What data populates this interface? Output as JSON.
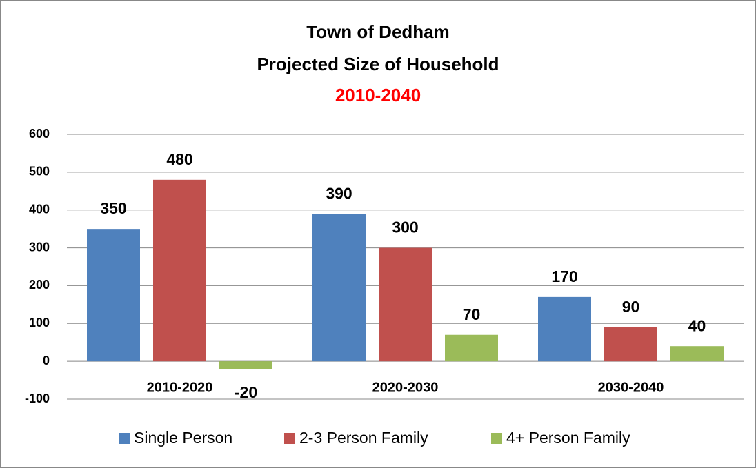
{
  "chart_data": {
    "type": "bar",
    "title": [
      "Town of Dedham",
      "Projected Size of Household"
    ],
    "subtitle": "2010-2040",
    "subtitle_color": "#ff0000",
    "categories": [
      "2010-2020",
      "2020-2030",
      "2030-2040"
    ],
    "series": [
      {
        "name": "Single Person",
        "color": "#4f81bd",
        "values": [
          350,
          390,
          170
        ]
      },
      {
        "name": "2-3 Person Family",
        "color": "#c0504d",
        "values": [
          480,
          300,
          90
        ]
      },
      {
        "name": "4+ Person Family",
        "color": "#9bbb59",
        "values": [
          -20,
          70,
          40
        ]
      }
    ],
    "ylim": [
      -100,
      600
    ],
    "yticks": [
      -100,
      0,
      100,
      200,
      300,
      400,
      500,
      600
    ],
    "grid": true,
    "legend": "bottom"
  }
}
